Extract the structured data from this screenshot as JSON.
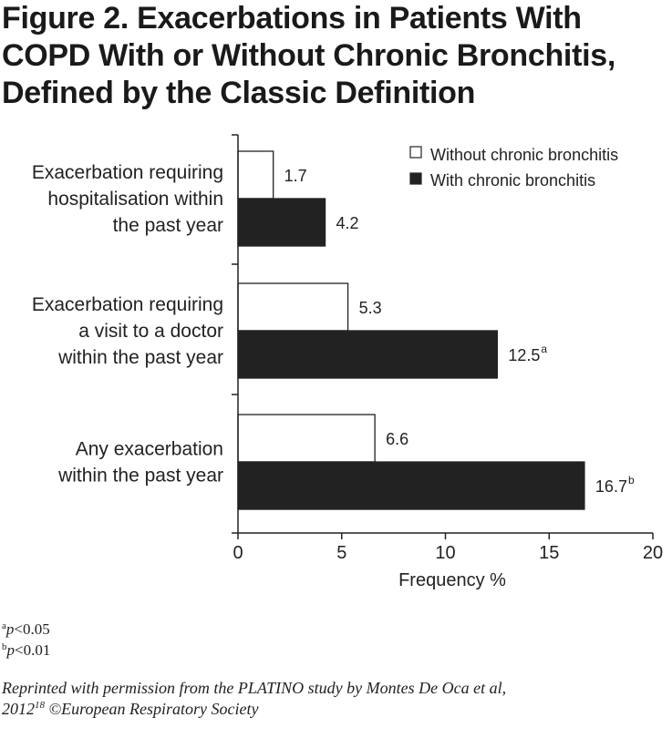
{
  "figure": {
    "title_lines": [
      "Figure 2. Exacerbations in Patients With",
      "COPD With or Without Chronic Bronchitis,",
      "Defined by the Classic Definition"
    ]
  },
  "chart_data": {
    "type": "bar",
    "orientation": "horizontal",
    "categories": [
      [
        "Exacerbation requiring",
        "hospitalisation within",
        "the past year"
      ],
      [
        "Exacerbation requiring",
        "a visit to a doctor",
        "within the past year"
      ],
      [
        "Any exacerbation",
        "within the past year"
      ]
    ],
    "series": [
      {
        "name": "Without chronic bronchitis",
        "fill": "#ffffff",
        "values": [
          1.7,
          5.3,
          6.6
        ],
        "labels": [
          "1.7",
          "5.3",
          "6.6"
        ],
        "superscripts": [
          "",
          "",
          ""
        ]
      },
      {
        "name": "With chronic bronchitis",
        "fill": "#222222",
        "values": [
          4.2,
          12.5,
          16.7
        ],
        "labels": [
          "4.2",
          "12.5",
          "16.7"
        ],
        "superscripts": [
          "",
          "a",
          "b"
        ]
      }
    ],
    "xlabel": "Frequency %",
    "xlim": [
      0,
      20
    ],
    "xticks": [
      0,
      5,
      10,
      15,
      20
    ],
    "tick_labels": [
      "0",
      "5",
      "10",
      "15",
      "20"
    ],
    "grid": false,
    "legend_position": "top-right"
  },
  "footnotes": {
    "a": {
      "sup": "a",
      "p": "p",
      "rest": "<0.05"
    },
    "b": {
      "sup": "b",
      "p": "p",
      "rest": "<0.01"
    }
  },
  "credit": {
    "line1": "Reprinted with permission from the PLATINO study by Montes De Oca et al,",
    "year": "2012",
    "ref": "18",
    "rest": " ©European Respiratory Society"
  },
  "colors": {
    "bar_dark": "#222222",
    "bar_light": "#ffffff",
    "axis": "#222222"
  }
}
